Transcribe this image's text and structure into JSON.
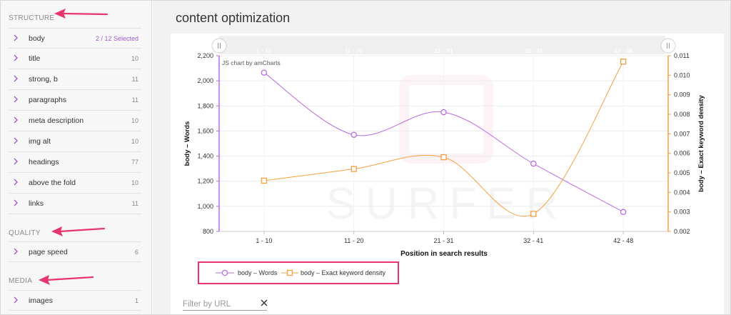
{
  "sidebar": {
    "sections": [
      {
        "title": "STRUCTURE",
        "items": [
          {
            "label": "body",
            "count": "2 / 12 Selected",
            "selected": true
          },
          {
            "label": "title",
            "count": "10"
          },
          {
            "label": "strong, b",
            "count": "11"
          },
          {
            "label": "paragraphs",
            "count": "11"
          },
          {
            "label": "meta description",
            "count": "10"
          },
          {
            "label": "img alt",
            "count": "10"
          },
          {
            "label": "headings",
            "count": "77"
          },
          {
            "label": "above the fold",
            "count": "10"
          },
          {
            "label": "links",
            "count": "11"
          }
        ]
      },
      {
        "title": "QUALITY",
        "items": [
          {
            "label": "page speed",
            "count": "6"
          }
        ]
      },
      {
        "title": "MEDIA",
        "items": [
          {
            "label": "images",
            "count": "1"
          }
        ]
      }
    ]
  },
  "main": {
    "title": "content optimization",
    "filter": {
      "placeholder": "Filter by URL"
    }
  },
  "colors": {
    "accent": "#a05cc8",
    "words": "#b86ce0",
    "density": "#f5a040",
    "highlight": "#e8356c"
  },
  "chart_data": {
    "type": "line",
    "credit": "JS chart by amCharts",
    "watermark": "SURFER",
    "categories": [
      "1 - 10",
      "11 - 20",
      "21 - 31",
      "32 - 41",
      "42 - 48"
    ],
    "scrollbar_labels": [
      "1 - 10",
      "11 - 20",
      "21 - 31",
      "32 - 41",
      "42 - 48"
    ],
    "xlabel": "Position in search results",
    "ylabel_left": "body – Words",
    "ylabel_right": "body – Exact keyword density",
    "ylim_left": [
      800,
      2200
    ],
    "ylim_right": [
      0.002,
      0.011
    ],
    "yticks_left": [
      "800",
      "1,000",
      "1,200",
      "1,400",
      "1,600",
      "1,800",
      "2,000",
      "2,200"
    ],
    "yticks_right": [
      "0.002",
      "0.003",
      "0.004",
      "0.005",
      "0.006",
      "0.007",
      "0.008",
      "0.009",
      "0.010",
      "0.011"
    ],
    "grid": true,
    "legend_position": "bottom-left",
    "series": [
      {
        "name": "body – Words",
        "axis": "left",
        "marker": "circle",
        "values": [
          2065,
          1570,
          1750,
          1340,
          955
        ]
      },
      {
        "name": "body – Exact keyword density",
        "axis": "right",
        "marker": "square",
        "values": [
          0.0046,
          0.0052,
          0.0058,
          0.0029,
          0.0107
        ]
      }
    ]
  }
}
